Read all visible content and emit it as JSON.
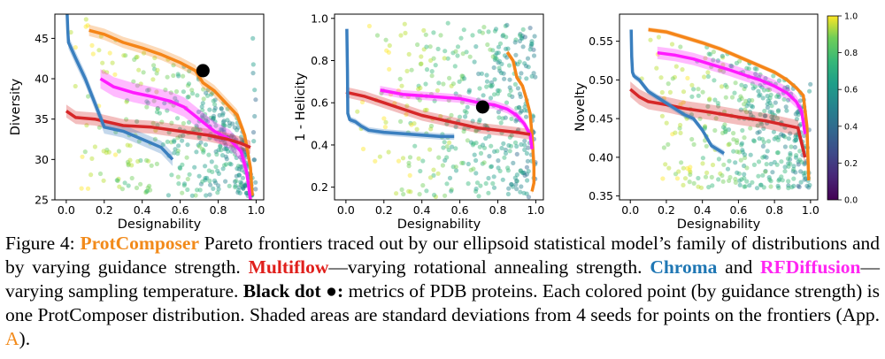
{
  "chart_data": [
    {
      "type": "scatter",
      "title": "",
      "xlabel": "Designability",
      "ylabel": "Diversity",
      "xlim": [
        -0.06,
        1.04
      ],
      "ylim": [
        25,
        48
      ],
      "xticks": [
        "0.0",
        "0.2",
        "0.4",
        "0.6",
        "0.8",
        "1.0"
      ],
      "yticks": [
        "25",
        "30",
        "35",
        "40",
        "45"
      ],
      "grid": false,
      "series": [
        {
          "key": "protcomposer",
          "color": "#f58518",
          "band": 0.7,
          "x": [
            0.12,
            0.2,
            0.3,
            0.4,
            0.5,
            0.6,
            0.68,
            0.72,
            0.78,
            0.84,
            0.9,
            0.94,
            0.97,
            0.98
          ],
          "y": [
            46.0,
            45.5,
            44.5,
            43.8,
            43.0,
            42.0,
            41.0,
            39.5,
            38.5,
            37.0,
            35.5,
            33.0,
            29.0,
            25.5
          ]
        },
        {
          "key": "rfdiffusion",
          "color": "#ff1aff",
          "band": 1.2,
          "x": [
            0.18,
            0.25,
            0.35,
            0.45,
            0.55,
            0.62,
            0.7,
            0.78,
            0.86,
            0.92,
            0.95,
            0.97
          ],
          "y": [
            40.0,
            39.0,
            38.3,
            37.8,
            37.2,
            36.5,
            35.0,
            33.5,
            32.5,
            31.0,
            28.5,
            25.0
          ]
        },
        {
          "key": "multiflow",
          "color": "#d62728",
          "band": 0.8,
          "x": [
            0.0,
            0.05,
            0.15,
            0.3,
            0.45,
            0.6,
            0.75,
            0.85,
            0.92,
            0.97
          ],
          "y": [
            36.0,
            35.2,
            35.0,
            34.2,
            34.0,
            33.5,
            33.0,
            32.5,
            32.0,
            31.5
          ]
        },
        {
          "key": "chroma",
          "color": "#3a7fbf",
          "band": 0.8,
          "x": [
            0.005,
            0.008,
            0.012,
            0.05,
            0.1,
            0.15,
            0.2,
            0.3,
            0.4,
            0.5,
            0.56
          ],
          "y": [
            48.0,
            46.0,
            44.5,
            42.5,
            40.0,
            37.0,
            34.0,
            33.5,
            32.5,
            31.5,
            30.0
          ]
        }
      ],
      "scatter_region": {
        "x": [
          0.02,
          1.0
        ],
        "y": [
          25.5,
          47.5
        ]
      },
      "pdb_point": {
        "x": 0.72,
        "y": 41.0
      }
    },
    {
      "type": "scatter",
      "title": "",
      "xlabel": "Designability",
      "ylabel": "1 - Helicity",
      "xlim": [
        -0.06,
        1.04
      ],
      "ylim": [
        0.14,
        1.02
      ],
      "xticks": [
        "0.0",
        "0.2",
        "0.4",
        "0.6",
        "0.8",
        "1.0"
      ],
      "yticks": [
        "0.2",
        "0.4",
        "0.6",
        "0.8",
        "1.0"
      ],
      "grid": false,
      "series": [
        {
          "key": "protcomposer",
          "color": "#f58518",
          "band": 0.015,
          "x": [
            0.85,
            0.88,
            0.9,
            0.93,
            0.95,
            0.97,
            0.98,
            0.99,
            0.99,
            0.98
          ],
          "y": [
            0.84,
            0.8,
            0.72,
            0.68,
            0.62,
            0.55,
            0.45,
            0.3,
            0.22,
            0.18
          ]
        },
        {
          "key": "rfdiffusion",
          "color": "#ff1aff",
          "band": 0.02,
          "x": [
            0.18,
            0.3,
            0.45,
            0.6,
            0.7,
            0.78,
            0.85,
            0.9,
            0.94,
            0.97,
            0.98
          ],
          "y": [
            0.66,
            0.64,
            0.63,
            0.62,
            0.6,
            0.59,
            0.57,
            0.54,
            0.5,
            0.45,
            0.38
          ]
        },
        {
          "key": "multiflow",
          "color": "#d62728",
          "band": 0.025,
          "x": [
            0.0,
            0.1,
            0.2,
            0.3,
            0.4,
            0.5,
            0.6,
            0.7,
            0.8,
            0.9,
            0.97
          ],
          "y": [
            0.65,
            0.63,
            0.6,
            0.57,
            0.54,
            0.52,
            0.5,
            0.48,
            0.47,
            0.46,
            0.45
          ]
        },
        {
          "key": "chroma",
          "color": "#3a7fbf",
          "band": 0.015,
          "x": [
            0.005,
            0.008,
            0.01,
            0.02,
            0.05,
            0.08,
            0.12,
            0.2,
            0.35,
            0.5,
            0.57
          ],
          "y": [
            0.95,
            0.75,
            0.55,
            0.52,
            0.51,
            0.49,
            0.47,
            0.46,
            0.45,
            0.44,
            0.44
          ]
        }
      ],
      "scatter_region": {
        "x": [
          0.05,
          1.0
        ],
        "y": [
          0.15,
          0.98
        ]
      },
      "pdb_point": {
        "x": 0.72,
        "y": 0.58
      }
    },
    {
      "type": "scatter",
      "title": "",
      "xlabel": "Designability",
      "ylabel": "Novelty",
      "xlim": [
        -0.06,
        1.04
      ],
      "ylim": [
        0.345,
        0.585
      ],
      "xticks": [
        "0.0",
        "0.2",
        "0.4",
        "0.6",
        "0.8",
        "1.0"
      ],
      "yticks": [
        "0.35",
        "0.40",
        "0.45",
        "0.50",
        "0.55"
      ],
      "grid": false,
      "series": [
        {
          "key": "protcomposer",
          "color": "#f58518",
          "band": 0.003,
          "x": [
            0.1,
            0.2,
            0.3,
            0.4,
            0.5,
            0.6,
            0.7,
            0.8,
            0.87,
            0.92,
            0.96,
            0.98,
            0.99
          ],
          "y": [
            0.565,
            0.562,
            0.555,
            0.548,
            0.54,
            0.53,
            0.52,
            0.51,
            0.5,
            0.49,
            0.48,
            0.44,
            0.37
          ]
        },
        {
          "key": "rfdiffusion",
          "color": "#ff1aff",
          "band": 0.008,
          "x": [
            0.15,
            0.25,
            0.35,
            0.45,
            0.55,
            0.65,
            0.72,
            0.8,
            0.87,
            0.92,
            0.95,
            0.97
          ],
          "y": [
            0.535,
            0.532,
            0.527,
            0.52,
            0.513,
            0.505,
            0.5,
            0.492,
            0.483,
            0.472,
            0.46,
            0.43
          ]
        },
        {
          "key": "multiflow",
          "color": "#d62728",
          "band": 0.01,
          "x": [
            0.0,
            0.05,
            0.1,
            0.2,
            0.3,
            0.45,
            0.6,
            0.75,
            0.85,
            0.93,
            0.97
          ],
          "y": [
            0.488,
            0.478,
            0.472,
            0.468,
            0.463,
            0.458,
            0.452,
            0.447,
            0.442,
            0.438,
            0.4
          ]
        },
        {
          "key": "chroma",
          "color": "#3a7fbf",
          "band": 0.004,
          "x": [
            0.005,
            0.008,
            0.012,
            0.02,
            0.05,
            0.1,
            0.2,
            0.3,
            0.35,
            0.4,
            0.45,
            0.52
          ],
          "y": [
            0.565,
            0.53,
            0.51,
            0.505,
            0.5,
            0.485,
            0.47,
            0.455,
            0.45,
            0.435,
            0.415,
            0.405
          ]
        }
      ],
      "scatter_region": {
        "x": [
          0.05,
          1.0
        ],
        "y": [
          0.36,
          0.575
        ]
      },
      "pdb_point": null
    }
  ],
  "colorbar": {
    "colormap": "viridis",
    "range": [
      0.0,
      1.0
    ],
    "ticks": [
      "0.0",
      "0.2",
      "0.4",
      "0.6",
      "0.8",
      "1.0"
    ]
  },
  "caption": {
    "figure_label": "Figure 4:",
    "protcomposer": "ProtComposer",
    "part1": " Pareto frontiers traced out by our ellipsoid statistical model’s family of distributions and by varying guidance strength. ",
    "multiflow": "Multiflow",
    "part2": "—varying rotational annealing strength. ",
    "chroma": "Chroma",
    "and": " and ",
    "rfdiffusion": "RFDiffusion",
    "part3": "—varying sampling temperature. ",
    "black_dot": "Black dot ●:",
    "part4": " metrics of PDB proteins. Each colored point (by guidance strength) is one ProtComposer distribution. Shaded areas are standard deviations from 4 seeds for points on the frontiers (App. ",
    "app": "A",
    "part5": ")."
  }
}
